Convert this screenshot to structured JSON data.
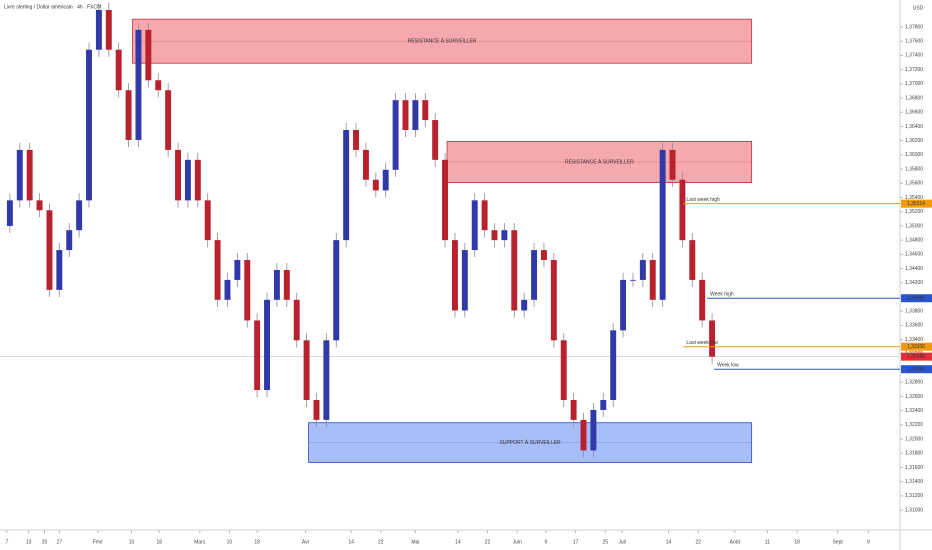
{
  "chart_data": {
    "type": "candlestick",
    "title": "Livre sterling / Dollar américain · 4h · FXCM",
    "currency": "USD",
    "up_color": "#2f3aa8",
    "down_color": "#b8222f",
    "wick_color": "#8a8a9a",
    "x": [
      0,
      1,
      2,
      3,
      4,
      5,
      6,
      7,
      8,
      9,
      10,
      11,
      12,
      13,
      14,
      15,
      16,
      17,
      18,
      19,
      20,
      21,
      22,
      23,
      24,
      25,
      26,
      27,
      28,
      29,
      30,
      31,
      32,
      33,
      34,
      35,
      36,
      37,
      38,
      39,
      40,
      41,
      42,
      43,
      44,
      45,
      46,
      47,
      48,
      49,
      50,
      51,
      52,
      53,
      54,
      55,
      56,
      57,
      58,
      59,
      60,
      61,
      62,
      63,
      64,
      65,
      66,
      67,
      68,
      69,
      70,
      71
    ],
    "open": [
      1.35,
      1.3536,
      1.3607,
      1.3536,
      1.3522,
      1.341,
      1.3466,
      1.3494,
      1.3536,
      1.3748,
      1.3804,
      1.3748,
      1.3691,
      1.3621,
      1.3776,
      1.3705,
      1.3691,
      1.3607,
      1.3536,
      1.3593,
      1.3536,
      1.348,
      1.3396,
      1.3424,
      1.3452,
      1.3367,
      1.3269,
      1.3396,
      1.3438,
      1.3396,
      1.3339,
      1.3255,
      1.3227,
      1.3339,
      1.348,
      1.3635,
      1.3607,
      1.3565,
      1.355,
      1.3579,
      1.3677,
      1.3635,
      1.3677,
      1.3649,
      1.3593,
      1.348,
      1.3381,
      1.3466,
      1.3536,
      1.3494,
      1.348,
      1.3494,
      1.3381,
      1.3396,
      1.3466,
      1.3452,
      1.3339,
      1.3255,
      1.3227,
      1.3184,
      1.3241,
      1.3255,
      1.3353,
      1.3424,
      1.3424,
      1.3452,
      1.3396,
      1.3607,
      1.3565,
      1.348,
      1.3424,
      1.3367
    ],
    "high": [
      1.3546,
      1.3617,
      1.3617,
      1.3546,
      1.3532,
      1.3476,
      1.3504,
      1.3546,
      1.3758,
      1.3814,
      1.3814,
      1.3758,
      1.3701,
      1.3786,
      1.3786,
      1.3715,
      1.3701,
      1.3617,
      1.3603,
      1.3603,
      1.3546,
      1.349,
      1.3434,
      1.3462,
      1.3462,
      1.3377,
      1.3406,
      1.3448,
      1.3448,
      1.3406,
      1.3349,
      1.3265,
      1.3349,
      1.349,
      1.3645,
      1.3645,
      1.3617,
      1.3575,
      1.3589,
      1.3687,
      1.3687,
      1.3687,
      1.3687,
      1.3659,
      1.3603,
      1.349,
      1.3476,
      1.3546,
      1.3546,
      1.3504,
      1.3504,
      1.3504,
      1.3406,
      1.3476,
      1.3476,
      1.3462,
      1.3349,
      1.3265,
      1.3237,
      1.3251,
      1.3265,
      1.3363,
      1.3434,
      1.3434,
      1.3462,
      1.3462,
      1.3617,
      1.3617,
      1.3575,
      1.349,
      1.3434,
      1.3377
    ],
    "low": [
      1.349,
      1.3526,
      1.3526,
      1.3512,
      1.34,
      1.34,
      1.3456,
      1.3484,
      1.3526,
      1.3738,
      1.3738,
      1.3681,
      1.3611,
      1.3611,
      1.3695,
      1.3681,
      1.3597,
      1.3526,
      1.3526,
      1.3526,
      1.347,
      1.3386,
      1.3386,
      1.3414,
      1.3357,
      1.3259,
      1.3259,
      1.3386,
      1.3386,
      1.3329,
      1.3245,
      1.3217,
      1.3217,
      1.3329,
      1.347,
      1.3597,
      1.3555,
      1.354,
      1.354,
      1.3569,
      1.3625,
      1.3625,
      1.3639,
      1.3583,
      1.347,
      1.3371,
      1.3371,
      1.3456,
      1.3484,
      1.347,
      1.347,
      1.3371,
      1.3371,
      1.3386,
      1.3442,
      1.3329,
      1.3245,
      1.3217,
      1.3174,
      1.3174,
      1.3231,
      1.3245,
      1.3343,
      1.3414,
      1.3414,
      1.3386,
      1.3386,
      1.3555,
      1.347,
      1.3414,
      1.3357,
      1.3306
    ],
    "close": [
      1.3536,
      1.3607,
      1.3536,
      1.3522,
      1.341,
      1.3466,
      1.3494,
      1.3536,
      1.3748,
      1.3804,
      1.3748,
      1.3691,
      1.3621,
      1.3776,
      1.3705,
      1.3691,
      1.3607,
      1.3536,
      1.3593,
      1.3536,
      1.348,
      1.3396,
      1.3424,
      1.3452,
      1.3367,
      1.3269,
      1.3396,
      1.3438,
      1.3396,
      1.3339,
      1.3255,
      1.3227,
      1.3339,
      1.348,
      1.3635,
      1.3607,
      1.3565,
      1.355,
      1.3579,
      1.3677,
      1.3635,
      1.3677,
      1.3649,
      1.3593,
      1.348,
      1.3381,
      1.3466,
      1.3536,
      1.3494,
      1.348,
      1.3494,
      1.3381,
      1.3396,
      1.3466,
      1.3452,
      1.3339,
      1.3255,
      1.3227,
      1.3184,
      1.3241,
      1.3255,
      1.3353,
      1.3424,
      1.3424,
      1.3452,
      1.3396,
      1.3607,
      1.3565,
      1.348,
      1.3424,
      1.3367,
      1.3316
    ],
    "xlim": [
      -1,
      90
    ],
    "ylim": [
      1.3072,
      1.3818
    ],
    "xticks": [
      {
        "value": -0.3,
        "label": "7"
      },
      {
        "value": 1.9,
        "label": "13"
      },
      {
        "value": 3.5,
        "label": "20"
      },
      {
        "value": 5.0,
        "label": "27"
      },
      {
        "value": 8.9,
        "label": "Févr"
      },
      {
        "value": 12.3,
        "label": "10"
      },
      {
        "value": 15.1,
        "label": "18"
      },
      {
        "value": 19.2,
        "label": "Mars"
      },
      {
        "value": 22.2,
        "label": "10"
      },
      {
        "value": 25.0,
        "label": "18"
      },
      {
        "value": 29.9,
        "label": "Avr"
      },
      {
        "value": 34.5,
        "label": "14"
      },
      {
        "value": 37.5,
        "label": "22"
      },
      {
        "value": 41.0,
        "label": "Mai"
      },
      {
        "value": 45.3,
        "label": "14"
      },
      {
        "value": 48.3,
        "label": "22"
      },
      {
        "value": 51.3,
        "label": "Juin"
      },
      {
        "value": 54.2,
        "label": "9"
      },
      {
        "value": 57.2,
        "label": "17"
      },
      {
        "value": 60.2,
        "label": "25"
      },
      {
        "value": 61.9,
        "label": "Juil"
      },
      {
        "value": 66.6,
        "label": "14"
      },
      {
        "value": 69.6,
        "label": "22"
      },
      {
        "value": 73.3,
        "label": "Août"
      },
      {
        "value": 76.6,
        "label": "11"
      },
      {
        "value": 79.6,
        "label": "18"
      },
      {
        "value": 83.7,
        "label": "Sept"
      },
      {
        "value": 86.8,
        "label": "9"
      }
    ],
    "yticks": [
      {
        "value": 1.31,
        "label": "1,31000"
      },
      {
        "value": 1.312,
        "label": "1,31200"
      },
      {
        "value": 1.314,
        "label": "1,31400"
      },
      {
        "value": 1.316,
        "label": "1,31600"
      },
      {
        "value": 1.318,
        "label": "1,31800"
      },
      {
        "value": 1.32,
        "label": "1,32000"
      },
      {
        "value": 1.322,
        "label": "1,32200"
      },
      {
        "value": 1.324,
        "label": "1,32400"
      },
      {
        "value": 1.326,
        "label": "1,32600"
      },
      {
        "value": 1.328,
        "label": "1,32800"
      },
      {
        "value": 1.33,
        "label": "1,33000"
      },
      {
        "value": 1.332,
        "label": "1,33200"
      },
      {
        "value": 1.334,
        "label": "1,33400"
      },
      {
        "value": 1.336,
        "label": "1,33600"
      },
      {
        "value": 1.338,
        "label": "1,33800"
      },
      {
        "value": 1.34,
        "label": "1,34000"
      },
      {
        "value": 1.342,
        "label": "1,34200"
      },
      {
        "value": 1.344,
        "label": "1,34400"
      },
      {
        "value": 1.346,
        "label": "1,34600"
      },
      {
        "value": 1.348,
        "label": "1,34800"
      },
      {
        "value": 1.35,
        "label": "1,35000"
      },
      {
        "value": 1.352,
        "label": "1,35200"
      },
      {
        "value": 1.354,
        "label": "1,35400"
      },
      {
        "value": 1.356,
        "label": "1,35600"
      },
      {
        "value": 1.358,
        "label": "1,35800"
      },
      {
        "value": 1.36,
        "label": "1,36000"
      },
      {
        "value": 1.362,
        "label": "1,36200"
      },
      {
        "value": 1.364,
        "label": "1,36400"
      },
      {
        "value": 1.366,
        "label": "1,36600"
      },
      {
        "value": 1.368,
        "label": "1,36800"
      },
      {
        "value": 1.37,
        "label": "1,37000"
      },
      {
        "value": 1.372,
        "label": "1,37200"
      },
      {
        "value": 1.374,
        "label": "1,37400"
      },
      {
        "value": 1.376,
        "label": "1,37600"
      },
      {
        "value": 1.378,
        "label": "1,37800"
      }
    ],
    "zones": [
      {
        "label": "RÉSISTANCE À SURVEILLER",
        "low": 1.3729,
        "high": 1.3791,
        "x_start": 12.4,
        "x_end": 75.0,
        "color": "#f28b93",
        "border": "#c0303c"
      },
      {
        "label": "RÉSISTANCE À SURVEILLER",
        "low": 1.3561,
        "high": 1.3619,
        "x_start": 44.2,
        "x_end": 75.0,
        "color": "#f28b93",
        "border": "#c0303c"
      },
      {
        "label": "SUPPORT À SURVEILLER",
        "low": 1.3167,
        "high": 1.3223,
        "x_start": 30.2,
        "x_end": 75.0,
        "color": "#8aa8f5",
        "border": "#2a4fc0"
      }
    ],
    "levels": [
      {
        "label": "Last week high",
        "value": 1.35314,
        "value_label": "1,35314",
        "x_start": 68.1,
        "color": "#f29a0b"
      },
      {
        "label": "Week high",
        "value": 1.33982,
        "value_label": "1,33982",
        "x_start": 70.5,
        "color": "#2a55d0"
      },
      {
        "label": "Last week low",
        "value": 1.333,
        "value_label": "1,33300",
        "x_start": 68.1,
        "color": "#f29a0b"
      },
      {
        "label": "Week low",
        "value": 1.32983,
        "value_label": "1,32983",
        "x_start": 71.2,
        "color": "#2a55d0"
      }
    ],
    "last_price": {
      "value": 1.3316,
      "value_label": "1,33160",
      "color": "#e0303a"
    }
  }
}
